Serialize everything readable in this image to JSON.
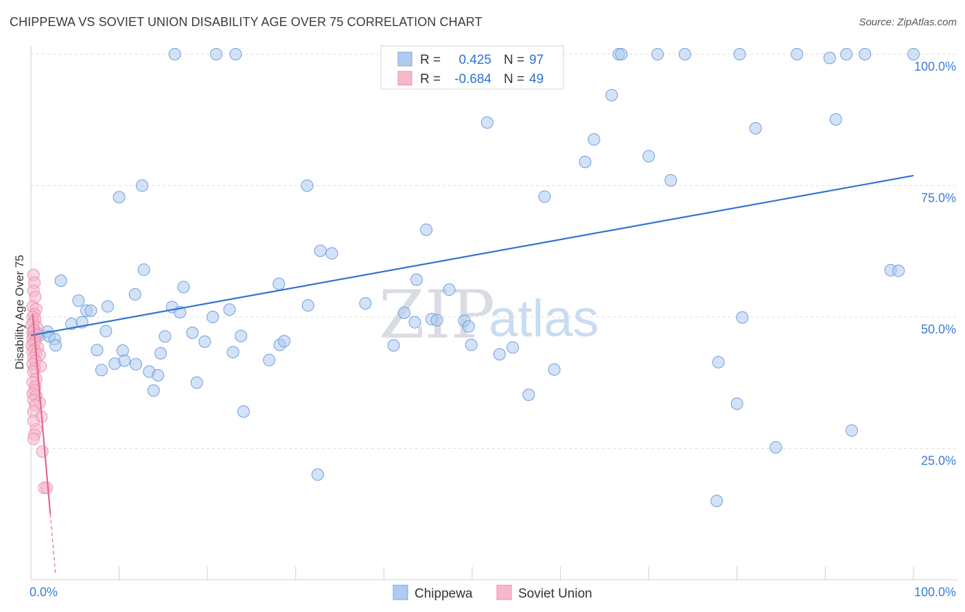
{
  "title": "CHIPPEWA VS SOVIET UNION DISABILITY AGE OVER 75 CORRELATION CHART",
  "source": "Source: ZipAtlas.com",
  "watermark": {
    "part1": "ZIP",
    "part2": "atlas"
  },
  "chart_data": {
    "type": "scatter",
    "xlabel": "",
    "ylabel": "Disability Age Over 75",
    "xlim": [
      0,
      100
    ],
    "ylim": [
      0,
      100
    ],
    "x_tick_labels": [
      "0.0%",
      "100.0%"
    ],
    "y_ticks": [
      {
        "value": 100,
        "label": "100.0%"
      },
      {
        "value": 75,
        "label": "75.0%"
      },
      {
        "value": 50,
        "label": "50.0%"
      },
      {
        "value": 25,
        "label": "25.0%"
      }
    ],
    "legend_stats": [
      {
        "r_label": "R =",
        "r_value": "0.425",
        "n_label": "N =",
        "n_value": "97",
        "color": "#aecbf0",
        "stroke": "#7aa6de"
      },
      {
        "r_label": "R =",
        "r_value": "-0.684",
        "n_label": "N =",
        "n_value": "49",
        "color": "#f6b8cb",
        "stroke": "#ef8fae"
      }
    ],
    "series": [
      {
        "name": "Chippewa",
        "color": "#aecbf0",
        "stroke": "#6f9fdc",
        "trend": {
          "x0": 0,
          "y0": 46.5,
          "x1": 100,
          "y1": 76.9,
          "color": "#2f72d0"
        },
        "points": [
          [
            0.4,
            47.6
          ],
          [
            0.8,
            46.8
          ],
          [
            1.1,
            46.6
          ],
          [
            1.9,
            47.2
          ],
          [
            2.1,
            46.3
          ],
          [
            2.7,
            45.8
          ],
          [
            2.8,
            44.6
          ],
          [
            3.4,
            56.9
          ],
          [
            4.6,
            48.7
          ],
          [
            5.4,
            53.1
          ],
          [
            5.8,
            49.0
          ],
          [
            6.3,
            51.2
          ],
          [
            6.8,
            51.2
          ],
          [
            7.5,
            43.7
          ],
          [
            8.0,
            39.9
          ],
          [
            8.5,
            47.3
          ],
          [
            8.7,
            52.0
          ],
          [
            9.5,
            41.1
          ],
          [
            10.0,
            72.8
          ],
          [
            10.4,
            43.6
          ],
          [
            10.6,
            41.7
          ],
          [
            11.9,
            41.0
          ],
          [
            11.8,
            54.3
          ],
          [
            12.6,
            75.0
          ],
          [
            12.8,
            59.0
          ],
          [
            13.4,
            39.6
          ],
          [
            13.9,
            36.0
          ],
          [
            14.4,
            38.9
          ],
          [
            14.7,
            43.1
          ],
          [
            15.2,
            46.3
          ],
          [
            16.0,
            51.9
          ],
          [
            16.3,
            100.0
          ],
          [
            16.9,
            50.9
          ],
          [
            17.3,
            55.7
          ],
          [
            18.3,
            47.0
          ],
          [
            18.8,
            37.5
          ],
          [
            19.7,
            45.3
          ],
          [
            20.6,
            50.0
          ],
          [
            21.0,
            100.0
          ],
          [
            22.5,
            51.4
          ],
          [
            22.9,
            43.3
          ],
          [
            23.2,
            100.0
          ],
          [
            23.8,
            46.4
          ],
          [
            24.1,
            32.0
          ],
          [
            27.0,
            41.8
          ],
          [
            28.1,
            56.3
          ],
          [
            28.2,
            44.7
          ],
          [
            28.7,
            45.4
          ],
          [
            31.4,
            52.2
          ],
          [
            31.3,
            75.0
          ],
          [
            32.5,
            20.0
          ],
          [
            32.8,
            62.6
          ],
          [
            34.1,
            62.1
          ],
          [
            37.9,
            52.6
          ],
          [
            41.1,
            44.6
          ],
          [
            42.3,
            50.8
          ],
          [
            43.5,
            49.0
          ],
          [
            43.7,
            57.1
          ],
          [
            44.8,
            66.6
          ],
          [
            45.4,
            49.6
          ],
          [
            46.0,
            49.4
          ],
          [
            47.4,
            55.2
          ],
          [
            49.1,
            49.3
          ],
          [
            49.6,
            48.2
          ],
          [
            49.9,
            44.7
          ],
          [
            51.7,
            87.0
          ],
          [
            53.1,
            42.9
          ],
          [
            54.6,
            44.2
          ],
          [
            56.4,
            35.2
          ],
          [
            58.2,
            72.9
          ],
          [
            59.3,
            40.0
          ],
          [
            62.8,
            79.5
          ],
          [
            63.8,
            83.8
          ],
          [
            65.8,
            92.2
          ],
          [
            66.6,
            100.0
          ],
          [
            66.9,
            100.0
          ],
          [
            70.0,
            80.6
          ],
          [
            71.0,
            100.0
          ],
          [
            72.5,
            76.0
          ],
          [
            74.1,
            100.0
          ],
          [
            77.7,
            15.0
          ],
          [
            77.9,
            41.4
          ],
          [
            80.0,
            33.5
          ],
          [
            80.3,
            100.0
          ],
          [
            80.6,
            49.9
          ],
          [
            82.1,
            85.9
          ],
          [
            84.4,
            25.2
          ],
          [
            86.8,
            100.0
          ],
          [
            90.5,
            99.3
          ],
          [
            91.2,
            87.6
          ],
          [
            92.4,
            100.0
          ],
          [
            93.0,
            28.4
          ],
          [
            94.5,
            100.0
          ],
          [
            97.4,
            58.9
          ],
          [
            98.3,
            58.8
          ],
          [
            100.0,
            100.0
          ],
          [
            0.3,
            46.6
          ]
        ]
      },
      {
        "name": "Soviet Union",
        "color": "#f6b8cb",
        "stroke": "#ee93b1",
        "trend": {
          "x0": 0.2,
          "y0": 50.5,
          "x1": 2.2,
          "y1": 12.5,
          "color": "#e8638f",
          "dash_to": {
            "x": 2.8,
            "y": 0.8
          }
        },
        "points": [
          [
            0.3,
            58.0
          ],
          [
            0.4,
            56.5
          ],
          [
            0.3,
            55.0
          ],
          [
            0.5,
            53.8
          ],
          [
            0.2,
            52.0
          ],
          [
            0.6,
            51.5
          ],
          [
            0.4,
            50.5
          ],
          [
            0.2,
            50.0
          ],
          [
            0.5,
            49.5
          ],
          [
            0.3,
            49.0
          ],
          [
            0.1,
            48.5
          ],
          [
            0.7,
            48.0
          ],
          [
            0.3,
            47.5
          ],
          [
            0.2,
            47.0
          ],
          [
            0.6,
            46.6
          ],
          [
            0.4,
            46.2
          ],
          [
            0.2,
            45.8
          ],
          [
            0.5,
            45.4
          ],
          [
            0.3,
            45.0
          ],
          [
            0.1,
            44.6
          ],
          [
            0.8,
            44.2
          ],
          [
            0.4,
            43.8
          ],
          [
            0.2,
            43.4
          ],
          [
            0.6,
            43.0
          ],
          [
            1.0,
            42.8
          ],
          [
            0.3,
            42.2
          ],
          [
            0.5,
            41.6
          ],
          [
            0.2,
            41.0
          ],
          [
            1.1,
            40.6
          ],
          [
            0.4,
            40.2
          ],
          [
            0.3,
            39.6
          ],
          [
            0.6,
            38.2
          ],
          [
            0.2,
            37.6
          ],
          [
            0.5,
            36.8
          ],
          [
            0.4,
            36.0
          ],
          [
            0.2,
            35.4
          ],
          [
            0.6,
            35.0
          ],
          [
            0.3,
            34.2
          ],
          [
            1.0,
            33.7
          ],
          [
            0.5,
            33.2
          ],
          [
            0.3,
            32.0
          ],
          [
            1.2,
            31.0
          ],
          [
            0.6,
            28.6
          ],
          [
            0.4,
            27.6
          ],
          [
            0.3,
            26.8
          ],
          [
            1.3,
            24.4
          ],
          [
            1.5,
            17.5
          ],
          [
            1.8,
            17.5
          ],
          [
            0.3,
            30.2
          ]
        ]
      }
    ]
  },
  "legend_bottom": [
    {
      "label": "Chippewa",
      "color": "#aecbf0",
      "stroke": "#7aa6de"
    },
    {
      "label": "Soviet Union",
      "color": "#f6b8cb",
      "stroke": "#ef8fae"
    }
  ]
}
